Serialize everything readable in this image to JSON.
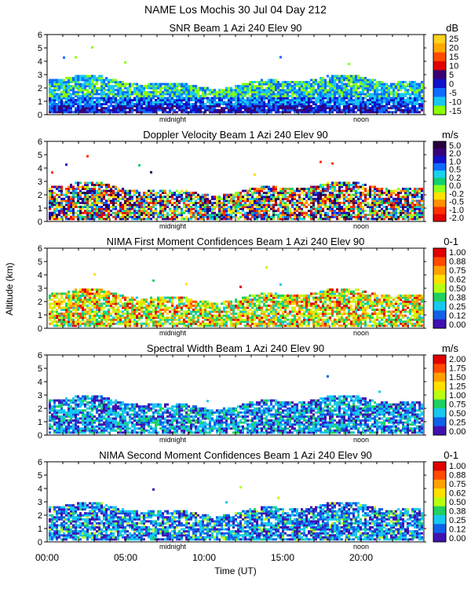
{
  "figure": {
    "title_line1": "NAME Los Mochis    30 Jul 04 Day 212",
    "ylabel": "Altitude (km)",
    "xlabel": "Time (UT)",
    "time_ticks": [
      "00:00",
      "05:00",
      "10:00",
      "15:00",
      "20:00"
    ],
    "markers": {
      "midnight": "midnight",
      "noon": "noon"
    }
  },
  "chart_data": [
    {
      "type": "heatmap",
      "title": "SNR Beam 1 Azi 240 Elev 90",
      "unit": "dB",
      "ylim": [
        0,
        6
      ],
      "yticks": [
        "0",
        "1",
        "2",
        "3",
        "4",
        "5",
        "6"
      ],
      "colorbar": {
        "labels": [
          "25",
          "20",
          "15",
          "10",
          "5",
          "0",
          "-5",
          "-10",
          "-15"
        ],
        "colors": [
          "#ffd21e",
          "#ffa800",
          "#ff4a00",
          "#e00000",
          "#3a0070",
          "#1010c8",
          "#0c6cff",
          "#18c8f0",
          "#8cff00"
        ]
      }
    },
    {
      "type": "heatmap",
      "title": "Doppler Velocity Beam 1 Azi 240 Elev 90",
      "unit": "m/s",
      "ylim": [
        0,
        6
      ],
      "yticks": [
        "0",
        "1",
        "2",
        "3",
        "4",
        "5",
        "6"
      ],
      "colorbar": {
        "labels": [
          "5.0",
          "2.0",
          "1.0",
          "0.5",
          "0.2",
          "0.0",
          "-0.2",
          "-0.5",
          "-1.0",
          "-2.0"
        ],
        "colors": [
          "#2a0040",
          "#3a007a",
          "#1010c8",
          "#0c6cff",
          "#18d0f0",
          "#10d070",
          "#8cff20",
          "#ffe000",
          "#ff9000",
          "#ff3000",
          "#e00000"
        ]
      }
    },
    {
      "type": "heatmap",
      "title": "NIMA First Moment Confidences Beam 1 Azi 240 Elev 90",
      "unit": "0-1",
      "ylim": [
        0,
        6
      ],
      "yticks": [
        "0",
        "1",
        "2",
        "3",
        "4",
        "5",
        "6"
      ],
      "colorbar": {
        "labels": [
          "1.00",
          "0.88",
          "0.75",
          "0.62",
          "0.50",
          "0.38",
          "0.25",
          "0.12",
          "0.00"
        ],
        "colors": [
          "#e00000",
          "#ff4a00",
          "#ffa000",
          "#ffe000",
          "#b8ff10",
          "#20d060",
          "#18c8f0",
          "#1060e8",
          "#4010b0"
        ]
      }
    },
    {
      "type": "heatmap",
      "title": "Spectral Width Beam 1 Azi 240 Elev 90",
      "unit": "m/s",
      "ylim": [
        0,
        6
      ],
      "yticks": [
        "0",
        "1",
        "2",
        "3",
        "4",
        "5",
        "6"
      ],
      "colorbar": {
        "labels": [
          "2.00",
          "1.75",
          "1.50",
          "1.25",
          "1.00",
          "0.75",
          "0.50",
          "0.25",
          "0.00"
        ],
        "colors": [
          "#e00000",
          "#ff4a00",
          "#ffa000",
          "#ffe000",
          "#b8ff10",
          "#20d060",
          "#18c8f0",
          "#1060e8",
          "#4010b0"
        ]
      }
    },
    {
      "type": "heatmap",
      "title": "NIMA Second Moment Confidences Beam 1 Azi 240 Elev 90",
      "unit": "0-1",
      "ylim": [
        0,
        6
      ],
      "yticks": [
        "0",
        "1",
        "2",
        "3",
        "4",
        "5",
        "6"
      ],
      "colorbar": {
        "labels": [
          "1.00",
          "0.88",
          "0.75",
          "0.62",
          "0.50",
          "0.38",
          "0.25",
          "0.12",
          "0.00"
        ],
        "colors": [
          "#e00000",
          "#ff4a00",
          "#ffa000",
          "#ffe000",
          "#b8ff10",
          "#20d060",
          "#18c8f0",
          "#1060e8",
          "#4010b0"
        ]
      }
    }
  ]
}
